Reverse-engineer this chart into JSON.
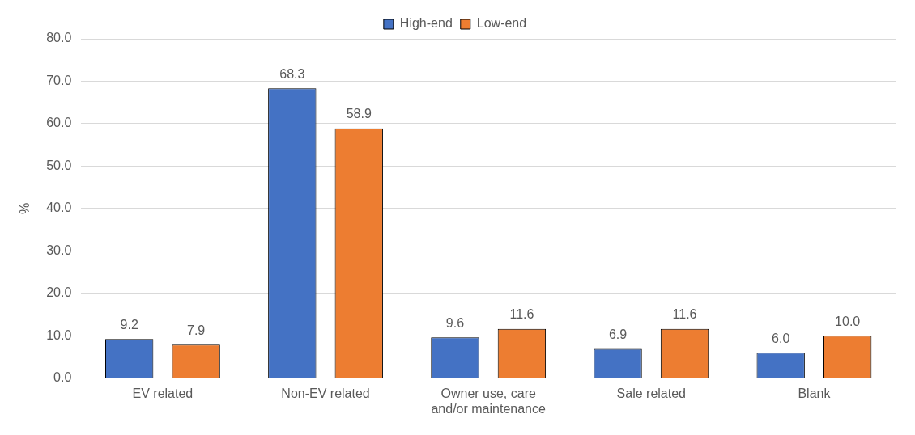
{
  "chart_data": {
    "type": "bar",
    "ylabel": "%",
    "categories": [
      "EV related",
      "Non-EV related",
      "Owner use, care and/or maintenance",
      "Sale related",
      "Blank"
    ],
    "series": [
      {
        "name": "High-end",
        "color": "#4472c4",
        "values": [
          9.2,
          68.3,
          9.6,
          6.9,
          6.0
        ],
        "value_labels": [
          "9.2",
          "68.3",
          "9.6",
          "6.9",
          "6.0"
        ]
      },
      {
        "name": "Low-end",
        "color": "#ed7d31",
        "values": [
          7.9,
          58.9,
          11.6,
          11.6,
          10.0
        ],
        "value_labels": [
          "7.9",
          "58.9",
          "11.6",
          "11.6",
          "10.0"
        ]
      }
    ],
    "ylim": [
      0,
      80
    ],
    "yticks": [
      {
        "value": 0,
        "label": "0.0"
      },
      {
        "value": 10,
        "label": "10.0"
      },
      {
        "value": 20,
        "label": "20.0"
      },
      {
        "value": 30,
        "label": "30.0"
      },
      {
        "value": 40,
        "label": "40.0"
      },
      {
        "value": 50,
        "label": "50.0"
      },
      {
        "value": 60,
        "label": "60.0"
      },
      {
        "value": 70,
        "label": "70.0"
      },
      {
        "value": 80,
        "label": "80.0"
      }
    ],
    "grid": "y",
    "legend": "top"
  }
}
